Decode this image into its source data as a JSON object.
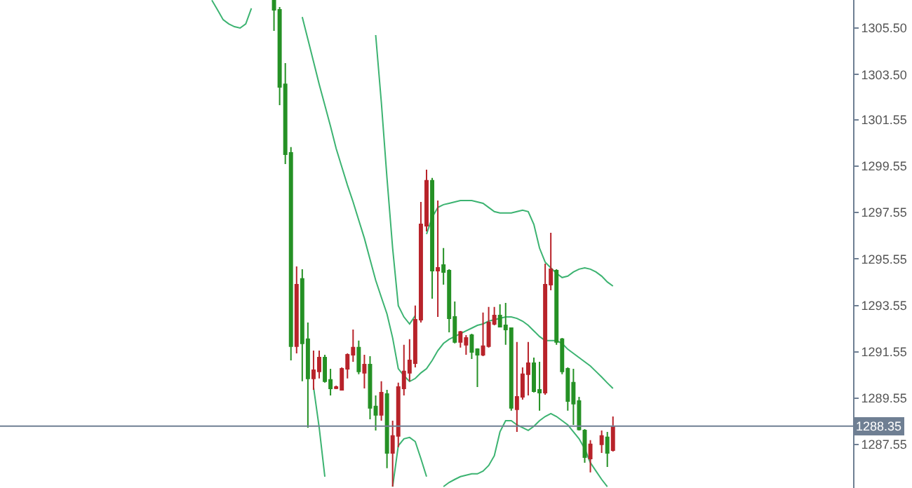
{
  "chart_data": {
    "type": "candlestick",
    "categories": [
      null,
      null,
      null,
      null,
      null,
      null,
      null,
      null,
      null,
      null,
      null,
      null,
      null,
      null,
      null,
      null,
      null,
      null,
      null,
      null,
      null,
      null,
      null,
      null,
      null,
      null,
      null,
      null,
      null,
      null,
      null,
      null,
      null,
      null,
      null,
      null,
      null,
      null,
      null,
      null,
      null,
      null,
      null,
      null,
      null,
      null,
      null,
      null,
      null,
      null,
      null,
      null,
      null,
      null,
      null,
      null,
      null,
      null,
      null,
      null,
      null,
      null,
      null,
      null,
      null,
      null,
      null,
      null,
      null,
      null,
      null,
      null,
      null,
      null,
      null,
      null,
      null,
      null,
      null,
      null,
      null,
      null,
      null,
      null,
      null,
      null,
      null,
      null,
      null,
      null,
      null,
      null,
      null,
      null,
      null,
      null,
      null,
      null,
      null,
      null,
      null,
      null,
      null,
      null,
      null,
      null,
      null,
      null,
      null,
      null,
      null,
      null,
      null,
      null,
      null,
      null,
      null,
      null,
      null,
      null,
      null,
      null,
      null,
      null,
      null,
      null,
      null,
      null,
      null,
      null,
      null,
      null,
      null,
      null,
      null,
      null,
      null,
      null,
      null,
      null,
      null,
      null,
      null,
      null,
      null,
      null,
      null,
      null,
      null,
      null,
      null
    ],
    "ohlc": [
      null,
      null,
      null,
      null,
      null,
      null,
      null,
      null,
      null,
      null,
      null,
      null,
      null,
      null,
      null,
      null,
      null,
      null,
      null,
      null,
      null,
      null,
      null,
      null,
      null,
      null,
      null,
      null,
      null,
      null,
      null,
      null,
      null,
      null,
      null,
      null,
      null,
      null,
      null,
      null,
      null,
      null,
      null,
      null,
      null,
      null,
      null,
      null,
      [
        1306.7,
        1306.7,
        1305.38,
        1306.29
      ],
      [
        1306.29,
        1306.41,
        1302.18,
        1302.96
      ],
      [
        1303.08,
        1303.99,
        1299.64,
        1300.06
      ],
      [
        1300.12,
        1300.37,
        1291.18,
        1291.79
      ],
      [
        1291.79,
        1295.23,
        1291.48,
        1294.44
      ],
      [
        1294.69,
        1295.11,
        1290.28,
        1291.91
      ],
      [
        1292.09,
        1292.81,
        1288.28,
        1290.4
      ],
      [
        1290.4,
        1291.6,
        1289.91,
        1290.76
      ],
      [
        1290.7,
        1291.6,
        1290.4,
        1291.3
      ],
      [
        1291.3,
        1291.42,
        1290.22,
        1290.28
      ],
      [
        1290.34,
        1290.82,
        1289.67,
        1289.97
      ],
      [
        1289.98,
        1290.09,
        1289.94,
        1290.03
      ],
      [
        1289.91,
        1290.88,
        1289.88,
        1290.82
      ],
      [
        1290.82,
        1291.48,
        1290.4,
        1291.42
      ],
      [
        1291.42,
        1292.51,
        1291.12,
        1291.73
      ],
      [
        1291.73,
        1292.03,
        1290.58,
        1290.7
      ],
      [
        1290.64,
        1291.42,
        1289.97,
        1291.0
      ],
      [
        1291.0,
        1291.36,
        1288.64,
        1289.13
      ],
      [
        1289.19,
        1289.67,
        1288.16,
        1288.83
      ],
      [
        1288.83,
        1290.28,
        1288.58,
        1289.79
      ],
      [
        1289.73,
        1289.91,
        1286.53,
        1287.19
      ],
      [
        1287.19,
        1288.58,
        1285.74,
        1287.92
      ],
      [
        1287.92,
        1290.22,
        1287.44,
        1290.03
      ],
      [
        1289.97,
        1291.85,
        1289.67,
        1290.7
      ],
      [
        1290.64,
        1292.09,
        1290.28,
        1291.18
      ],
      [
        1291.06,
        1293.54,
        1290.88,
        1292.93
      ],
      [
        1292.93,
        1298.01,
        1292.81,
        1297.04
      ],
      [
        1296.98,
        1299.4,
        1296.74,
        1298.92
      ],
      [
        1298.92,
        1299.04,
        1293.84,
        1295.05
      ],
      [
        1295.05,
        1298.07,
        1293.05,
        1295.17
      ],
      [
        1295.29,
        1296.02,
        1294.44,
        1294.99
      ],
      [
        1295.05,
        1295.11,
        1292.39,
        1292.99
      ],
      [
        1293.05,
        1293.72,
        1291.91,
        1291.97
      ],
      [
        1291.97,
        1292.45,
        1291.73,
        1292.4
      ],
      [
        1291.85,
        1292.27,
        1291.42,
        1292.15
      ],
      [
        1292.27,
        1292.33,
        1291.24,
        1291.54
      ],
      [
        1291.66,
        1291.7,
        1290.03,
        1291.42
      ],
      [
        1291.42,
        1293.24,
        1291.36,
        1291.79
      ],
      [
        1291.79,
        1293.48,
        1291.73,
        1292.81
      ],
      [
        1292.75,
        1293.48,
        1292.69,
        1293.11
      ],
      [
        1293.11,
        1293.6,
        1292.6,
        1292.63
      ],
      [
        1292.69,
        1293.66,
        1291.85,
        1292.51
      ],
      [
        1292.57,
        1292.6,
        1289.01,
        1289.13
      ],
      [
        1289.07,
        1291.97,
        1288.1,
        1289.61
      ],
      [
        1289.61,
        1290.88,
        1289.49,
        1290.58
      ],
      [
        1290.58,
        1291.97,
        1289.67,
        1291.06
      ],
      [
        1291.06,
        1291.3,
        1289.8,
        1289.85
      ],
      [
        1289.91,
        1291.12,
        1289.01,
        1289.79
      ],
      [
        1289.79,
        1295.35,
        1289.7,
        1294.44
      ],
      [
        1294.44,
        1296.68,
        1294.2,
        1295.11
      ],
      [
        1295.05,
        1295.11,
        1291.85,
        1291.97
      ],
      [
        1292.09,
        1292.15,
        1290.58,
        1290.7
      ],
      [
        1290.82,
        1290.88,
        1289.01,
        1289.43
      ],
      [
        1290.22,
        1290.82,
        1288.4,
        1289.31
      ],
      [
        1289.43,
        1289.61,
        1288.16,
        1288.2
      ],
      [
        1288.16,
        1288.22,
        1286.77,
        1287.01
      ],
      [
        1286.95,
        1287.74,
        1286.35,
        1287.56
      ],
      null,
      [
        1287.56,
        1288.16,
        1287.19,
        1287.92
      ],
      [
        1287.86,
        1288.1,
        1286.59,
        1287.19
      ],
      [
        1287.31,
        1288.76,
        1287.25,
        1288.34
      ],
      null,
      null,
      null,
      null,
      null,
      null,
      null,
      null,
      null,
      null,
      null,
      null,
      null,
      null,
      null,
      null,
      null,
      null,
      null,
      null,
      null,
      null,
      null,
      null,
      null,
      null,
      null,
      null,
      null,
      null,
      null,
      null,
      null,
      null,
      null,
      null,
      null,
      null,
      null,
      null,
      null,
      null
    ],
    "colors": [
      null,
      null,
      null,
      null,
      null,
      null,
      null,
      null,
      null,
      null,
      null,
      null,
      null,
      null,
      null,
      null,
      null,
      null,
      null,
      null,
      null,
      null,
      null,
      null,
      null,
      null,
      null,
      null,
      null,
      null,
      null,
      null,
      null,
      null,
      null,
      null,
      null,
      null,
      null,
      null,
      null,
      null,
      null,
      null,
      null,
      null,
      null,
      null,
      "#259125",
      "#259125",
      "#259125",
      "#259125",
      "#b8232a",
      "#259125",
      "#259125",
      "#b8232a",
      "#b8232a",
      "#259125",
      "#259125",
      "#b8232a",
      "#b8232a",
      "#b8232a",
      "#b8232a",
      "#259125",
      "#b8232a",
      "#259125",
      "#259125",
      "#b8232a",
      "#259125",
      "#b8232a",
      "#b8232a",
      "#b8232a",
      "#b8232a",
      "#b8232a",
      "#b8232a",
      "#b8232a",
      "#259125",
      "#b8232a",
      "#259125",
      "#259125",
      "#259125",
      "#b8232a",
      "#b8232a",
      "#259125",
      "#259125",
      "#b8232a",
      "#b8232a",
      "#b8232a",
      "#259125",
      "#259125",
      "#259125",
      "#b8232a",
      "#b8232a",
      "#b8232a",
      "#259125",
      "#259125",
      "#b8232a",
      "#b8232a",
      "#259125",
      "#259125",
      "#259125",
      "#259125",
      "#259125",
      "#259125",
      "#b8232a",
      null,
      "#b8232a",
      "#259125",
      "#b8232a",
      null,
      null,
      null,
      null,
      null,
      null,
      null,
      null,
      null,
      null,
      null,
      null,
      null,
      null,
      null,
      null,
      null,
      null,
      null,
      null,
      null,
      null,
      null,
      null,
      null,
      null,
      null,
      null,
      null,
      null,
      null,
      null,
      null,
      null,
      null,
      null,
      null,
      null,
      null,
      null,
      null,
      null
    ],
    "series": [
      {
        "type": "line",
        "color": "#3cb371",
        "values": [
          null,
          null,
          null,
          null,
          null,
          null,
          null,
          null,
          null,
          null,
          null,
          null,
          null,
          null,
          null,
          null,
          null,
          null,
          null,
          null,
          null,
          null,
          null,
          null,
          null,
          null,
          null,
          null,
          null,
          null,
          null,
          null,
          null,
          null,
          null,
          null,
          null,
          null,
          null,
          null,
          null,
          null,
          null,
          null,
          null,
          null,
          null,
          null,
          null,
          null,
          null,
          null,
          null,
          null,
          null,
          null,
          null,
          null,
          null,
          null,
          null,
          null,
          null,
          null,
          null,
          null,
          1305.2,
          1302.3,
          1299.04,
          1296.02,
          1293.54,
          1293.05,
          1292.75,
          1293.11,
          null,
          1296.62,
          1297.34,
          1297.77,
          1297.89,
          1297.95,
          1298.01,
          1298.07,
          1298.07,
          1298.07,
          1298.01,
          1297.95,
          1297.77,
          1297.59,
          1297.53,
          1297.53,
          1297.53,
          1297.59,
          1297.65,
          1297.59,
          1297.04,
          1296.02,
          1295.41,
          1295.17,
          1294.93,
          1294.75,
          1294.81,
          1294.99,
          1295.11,
          1295.17,
          1295.11,
          1294.99,
          1294.81,
          1294.56,
          1294.38,
          null,
          null,
          null,
          null,
          null,
          null,
          null,
          null,
          null,
          null,
          null,
          null,
          null,
          null,
          null,
          null,
          null,
          null,
          null,
          null,
          null,
          null,
          null,
          null,
          null,
          null,
          null,
          null,
          null,
          null,
          null,
          null,
          null,
          null,
          null,
          null,
          null,
          null,
          null,
          null,
          null,
          null
        ]
      },
      {
        "type": "line",
        "color": "#3cb371",
        "values": [
          null,
          null,
          null,
          null,
          null,
          null,
          null,
          null,
          null,
          null,
          null,
          null,
          null,
          null,
          null,
          null,
          null,
          null,
          null,
          null,
          null,
          null,
          null,
          null,
          null,
          null,
          null,
          null,
          null,
          null,
          null,
          null,
          null,
          null,
          null,
          null,
          null,
          null,
          null,
          null,
          null,
          null,
          null,
          null,
          null,
          null,
          null,
          null,
          null,
          null,
          null,
          null,
          null,
          1305.98,
          1305.02,
          1304.05,
          1303.08,
          1302.18,
          1301.27,
          1300.31,
          1299.52,
          1298.73,
          1298.01,
          1297.22,
          1296.44,
          1295.53,
          1294.63,
          1293.9,
          1293.18,
          1292.15,
          1290.82,
          1290.52,
          1290.27,
          1290.4,
          1290.64,
          1290.82,
          1291.18,
          1291.6,
          1291.91,
          1292.09,
          1292.21,
          1292.33,
          1292.45,
          1292.57,
          1292.69,
          1292.75,
          1292.87,
          1292.93,
          1292.99,
          1293.05,
          1293.05,
          1292.99,
          1292.87,
          1292.69,
          1292.45,
          1292.21,
          1292.03,
          1292.03,
          1292.03,
          1291.91,
          1291.66,
          1291.48,
          1291.3,
          1291.12,
          1290.94,
          1290.7,
          1290.46,
          1290.21,
          1289.97,
          null,
          null,
          null,
          null,
          null,
          null,
          null,
          null,
          null,
          null,
          null,
          null,
          null,
          null,
          null,
          null,
          null,
          null,
          null,
          null,
          null,
          null,
          null,
          null,
          null,
          null,
          null,
          null,
          null,
          null,
          null,
          null,
          null,
          null,
          null,
          null,
          null,
          null,
          null,
          null,
          null,
          null
        ]
      },
      {
        "type": "line",
        "color": "#3cb371",
        "values": [
          null,
          null,
          null,
          null,
          null,
          null,
          null,
          null,
          null,
          null,
          null,
          null,
          null,
          null,
          null,
          null,
          null,
          null,
          null,
          null,
          null,
          null,
          null,
          null,
          null,
          null,
          null,
          null,
          null,
          null,
          null,
          null,
          null,
          null,
          null,
          null,
          null,
          1306.7,
          1306.29,
          1305.86,
          1305.68,
          1305.56,
          1305.5,
          1305.68,
          1306.35,
          null,
          null,
          null,
          null,
          null,
          null,
          null,
          null,
          null,
          null,
          1290.03,
          1288.28,
          1286.17,
          null,
          null,
          null,
          null,
          null,
          null,
          null,
          null,
          null,
          null,
          null,
          1285.74,
          1287.5,
          1287.8,
          1287.86,
          1287.68,
          1286.95,
          1286.17,
          null,
          null,
          1285.74,
          1285.92,
          1286.05,
          1286.17,
          1286.23,
          1286.29,
          1286.29,
          1286.41,
          1286.65,
          1287.07,
          1288.1,
          1288.58,
          1288.58,
          1288.4,
          1288.28,
          1288.16,
          1288.34,
          1288.58,
          1288.76,
          1288.89,
          1288.76,
          1288.58,
          1288.4,
          1288.1,
          1287.8,
          1287.37,
          1286.77,
          1286.41,
          1286.05,
          1285.74,
          null,
          null,
          null,
          null,
          null,
          null,
          null,
          null,
          null,
          null,
          null,
          null,
          null,
          null,
          null,
          null,
          null,
          null,
          null,
          null,
          null,
          null,
          null,
          null,
          null,
          null,
          null,
          null,
          null,
          null,
          null,
          null,
          null,
          null,
          null,
          null,
          null,
          null,
          null,
          null,
          null,
          null,
          null
        ]
      }
    ],
    "ylim": [
      1285.68,
      1306.71
    ],
    "yticks": [
      {
        "value": 1287.55,
        "label": "1287.55"
      },
      {
        "value": 1289.55,
        "label": "1289.55"
      },
      {
        "value": 1291.55,
        "label": "1291.55"
      },
      {
        "value": 1293.55,
        "label": "1293.55"
      },
      {
        "value": 1295.55,
        "label": "1295.55"
      },
      {
        "value": 1297.55,
        "label": "1297.55"
      },
      {
        "value": 1299.55,
        "label": "1299.55"
      },
      {
        "value": 1301.55,
        "label": "1301.55"
      },
      {
        "value": 1303.5,
        "label": "1303.50"
      },
      {
        "value": 1305.5,
        "label": "1305.50"
      }
    ],
    "ref_lines": [
      {
        "axis": "y",
        "value": 1288.35,
        "label": "1288.35",
        "color": "#6f7f93"
      }
    ],
    "tick_labels": "y"
  }
}
